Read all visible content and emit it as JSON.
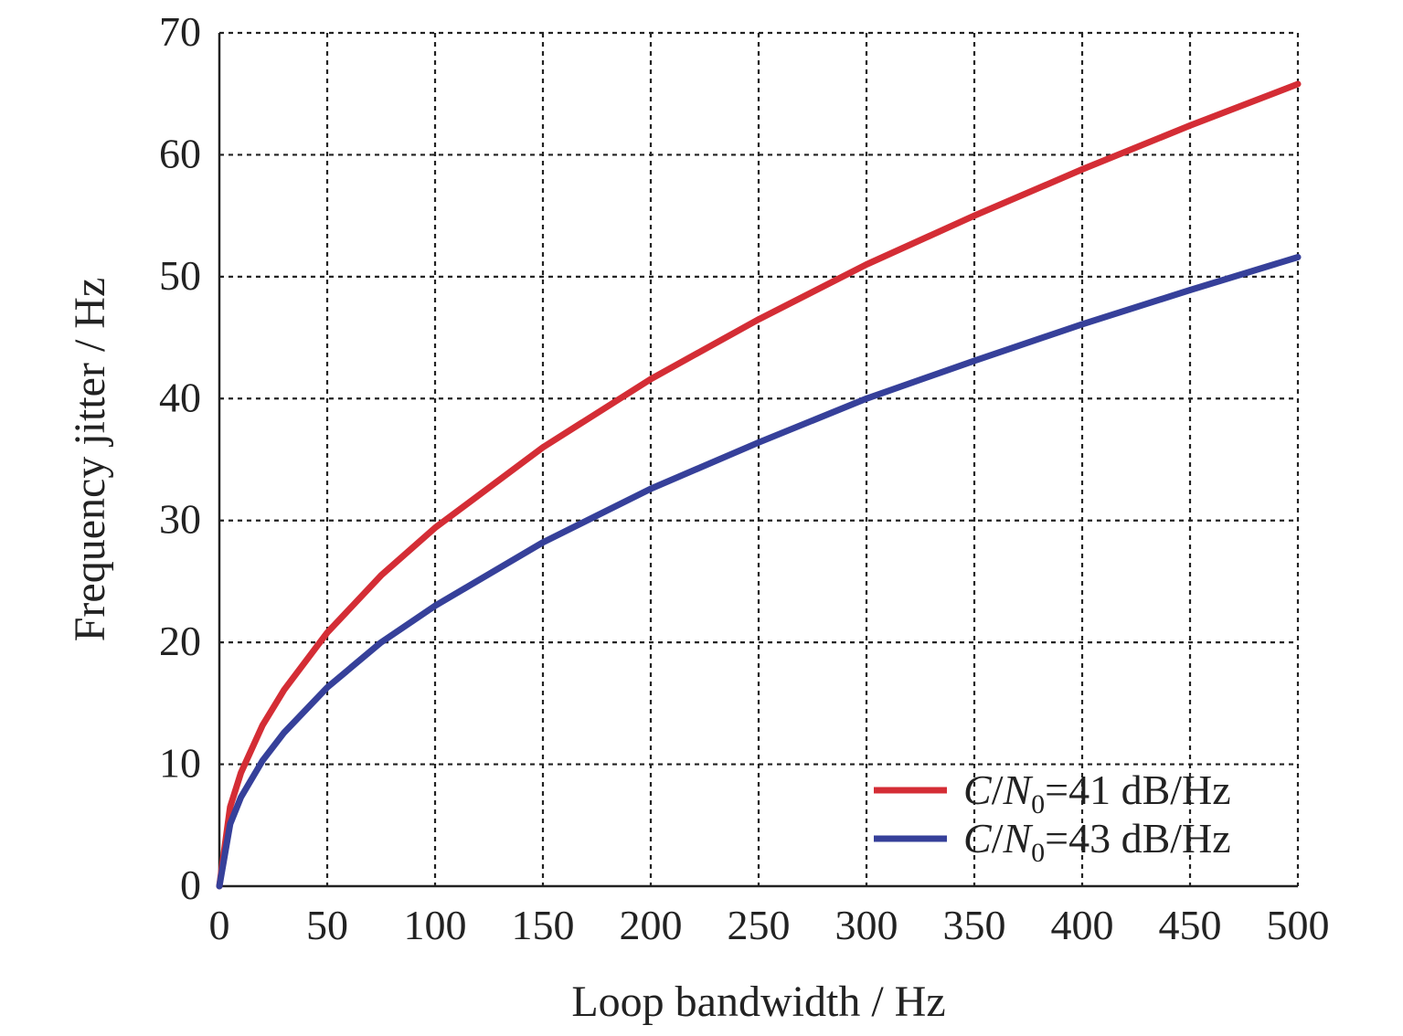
{
  "chart_data": {
    "type": "line",
    "title": "",
    "xlabel": "Loop bandwidth / Hz",
    "ylabel": "Frequency jitter / Hz",
    "xlim": [
      0,
      500
    ],
    "ylim": [
      0,
      70
    ],
    "xticks": [
      0,
      50,
      100,
      150,
      200,
      250,
      300,
      350,
      400,
      450,
      500
    ],
    "yticks": [
      0,
      10,
      20,
      30,
      40,
      50,
      60,
      70
    ],
    "grid": true,
    "legend_position": "bottom-right",
    "x": [
      0,
      5,
      10,
      20,
      30,
      50,
      75,
      100,
      150,
      200,
      250,
      300,
      350,
      400,
      450,
      500
    ],
    "series": [
      {
        "name": "C/N0=41 dB/Hz",
        "legend_parts": {
          "c": "C",
          "slash": "/",
          "n": "N",
          "sub": "0",
          "rest": "=41 dB/Hz"
        },
        "color": "#d42d35",
        "values": [
          0,
          6.5,
          9.3,
          13.2,
          16.1,
          20.8,
          25.5,
          29.4,
          36.0,
          41.6,
          46.5,
          51.0,
          55.0,
          58.8,
          62.4,
          65.8
        ]
      },
      {
        "name": "C/N0=43 dB/Hz",
        "legend_parts": {
          "c": "C",
          "slash": "/",
          "n": "N",
          "sub": "0",
          "rest": "=43 dB/Hz"
        },
        "color": "#36409a",
        "values": [
          0,
          5.1,
          7.3,
          10.3,
          12.6,
          16.3,
          20.0,
          23.0,
          28.2,
          32.6,
          36.4,
          40.0,
          43.1,
          46.1,
          48.9,
          51.6
        ]
      }
    ]
  }
}
